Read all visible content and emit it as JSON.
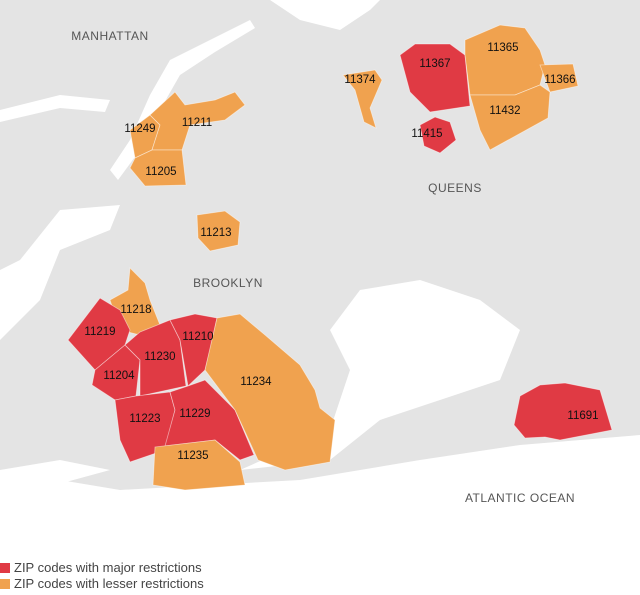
{
  "places": [
    "MANHATTAN",
    "QUEENS",
    "BROOKLYN",
    "ATLANTIC OCEAN"
  ],
  "zips": [
    {
      "label": "11249",
      "level": "lesser"
    },
    {
      "label": "11211",
      "level": "lesser"
    },
    {
      "label": "11205",
      "level": "lesser"
    },
    {
      "label": "11213",
      "level": "lesser"
    },
    {
      "label": "11218",
      "level": "lesser"
    },
    {
      "label": "11219",
      "level": "major"
    },
    {
      "label": "11204",
      "level": "major"
    },
    {
      "label": "11230",
      "level": "major"
    },
    {
      "label": "11210",
      "level": "major"
    },
    {
      "label": "11223",
      "level": "major"
    },
    {
      "label": "11229",
      "level": "major"
    },
    {
      "label": "11234",
      "level": "lesser"
    },
    {
      "label": "11235",
      "level": "lesser"
    },
    {
      "label": "11374",
      "level": "lesser"
    },
    {
      "label": "11367",
      "level": "major"
    },
    {
      "label": "11365",
      "level": "lesser"
    },
    {
      "label": "11366",
      "level": "lesser"
    },
    {
      "label": "11432",
      "level": "lesser"
    },
    {
      "label": "11415",
      "level": "major"
    },
    {
      "label": "11691",
      "level": "major"
    }
  ],
  "legend": [
    {
      "level": "major",
      "label": "ZIP codes with major restrictions",
      "color": "#e03a44"
    },
    {
      "level": "lesser",
      "label": "ZIP codes with lesser restrictions",
      "color": "#f0a24f"
    }
  ]
}
